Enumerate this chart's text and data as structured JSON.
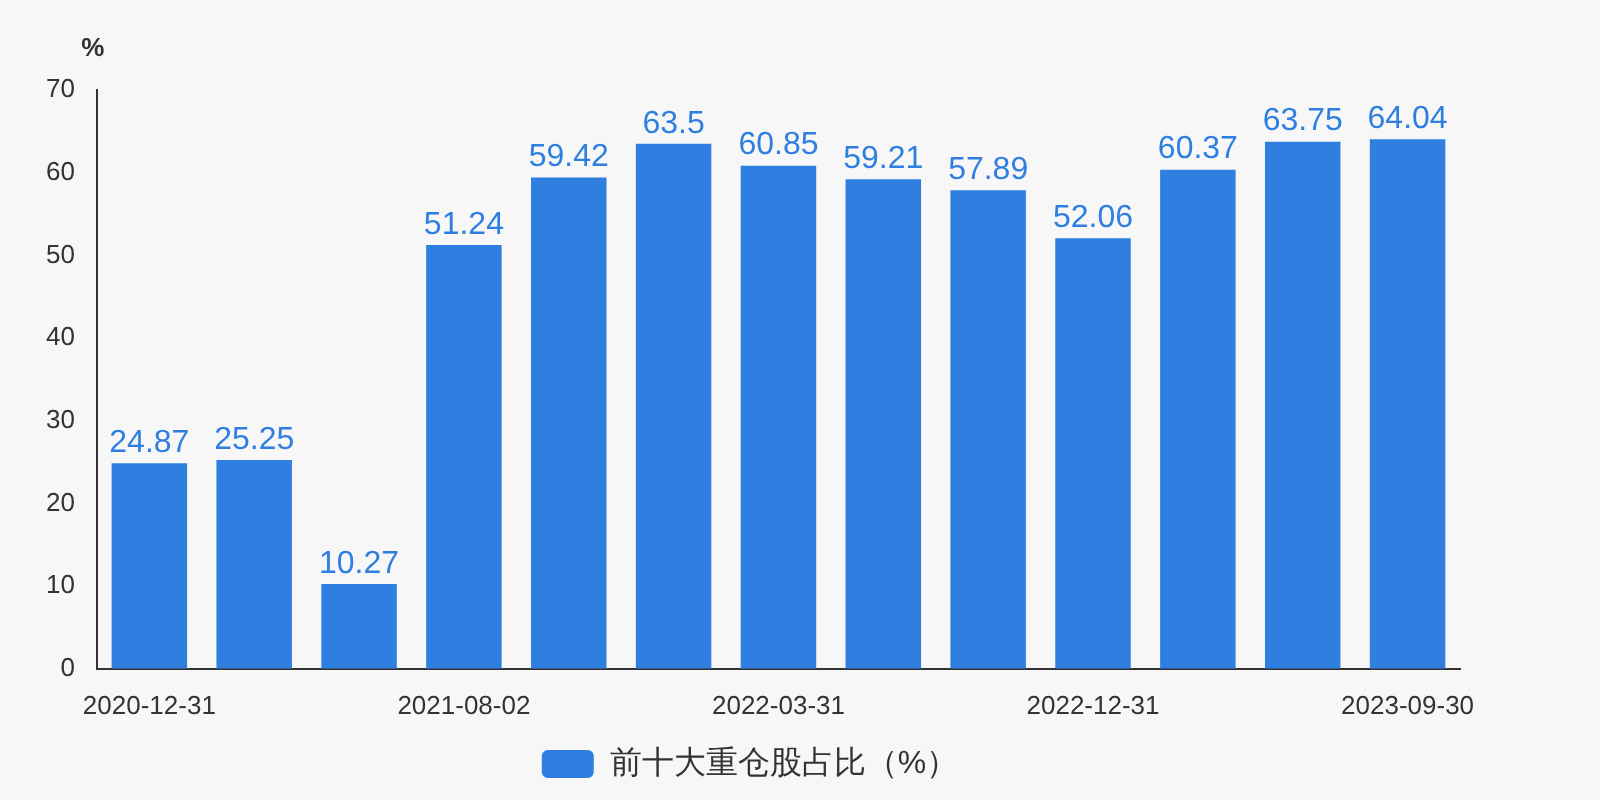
{
  "chart_data": {
    "type": "bar",
    "ylabel": "%",
    "categories": [
      "2020-12-31",
      null,
      null,
      "2021-08-02",
      null,
      null,
      "2022-03-31",
      null,
      null,
      "2022-12-31",
      null,
      null,
      "2023-09-30"
    ],
    "series": [
      {
        "name": "前十大重仓股占比（%）",
        "color": "#2e7fe0",
        "values": [
          24.87,
          25.25,
          10.27,
          51.24,
          59.42,
          63.5,
          60.85,
          59.21,
          57.89,
          52.06,
          60.37,
          63.75,
          64.04
        ]
      }
    ],
    "ylim": [
      0,
      70
    ],
    "yticks": [
      0,
      10,
      20,
      30,
      40,
      50,
      60,
      70
    ],
    "data_labels": true,
    "grid": false,
    "legend": "bottom"
  }
}
